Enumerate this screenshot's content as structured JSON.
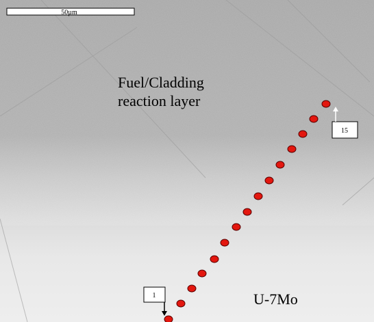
{
  "scale_bar": {
    "label": "50µm"
  },
  "labels": {
    "region_top": [
      "Fuel/Cladding",
      "reaction layer"
    ],
    "region_bottom": "U-7Mo"
  },
  "points": {
    "first": 1,
    "last": 15
  }
}
